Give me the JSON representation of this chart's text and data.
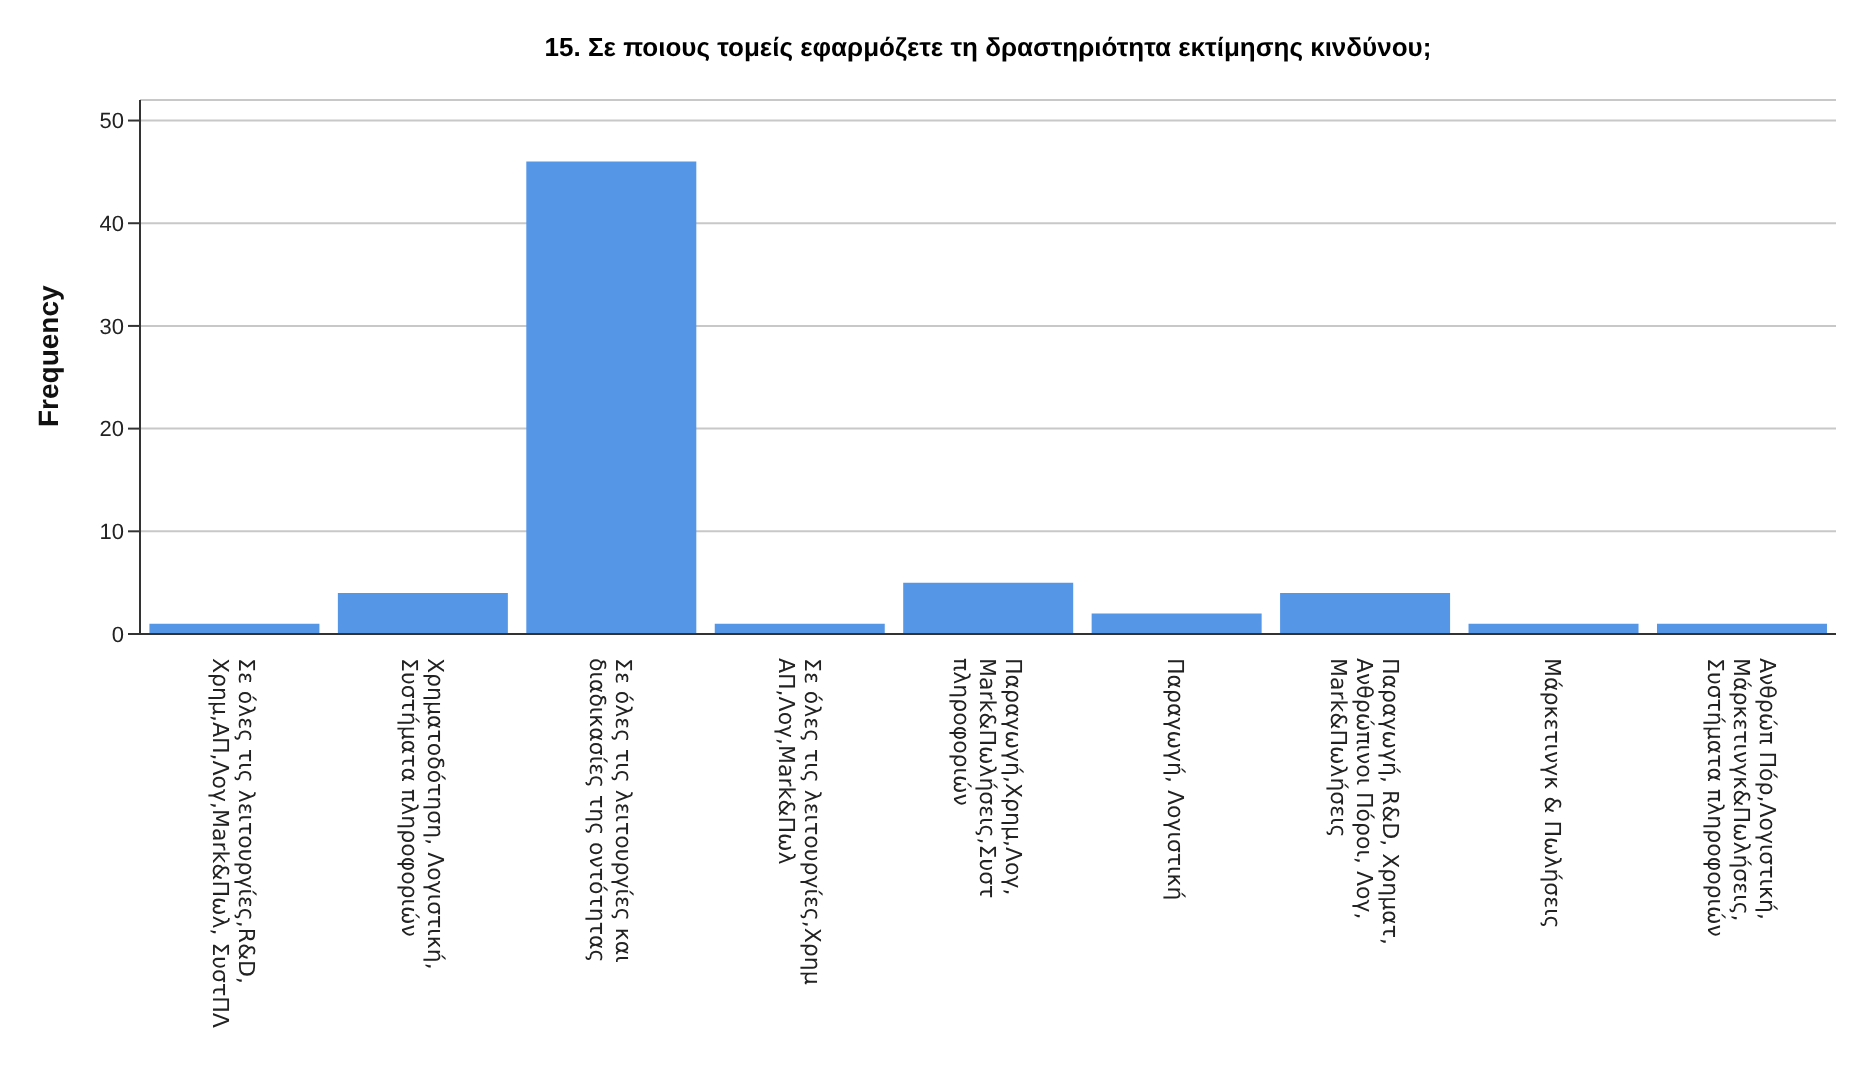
{
  "chart_data": {
    "type": "bar",
    "title": "15. Σε ποιους τομείς εφαρμόζετε τη δραστηριότητα εκτίμησης κινδύνου;",
    "ylabel": "Frequency",
    "categories": [
      "Σε όλες τις λειτουργίες,R&D, Χρημ,ΑΠ,Λογ,Mark&Πωλ, ΣυστΠΛ",
      "Χρηματοδότηση, Λογιστική, Συστήματα πληροφοριών",
      "Σε όλες τις λειτουργίες και διαδικασίες της οντότητας",
      "Σε όλες τις λειτουργίες,Χρημ ΑΠ,Λογ,Mark&Πωλ",
      "Παραγωγή,Χρημ,Λογ, Mark&Πωλήσεις,Συστ πληροφοριών",
      "Παραγωγή, Λογιστική",
      "Παραγωγή, R&D, Χρηματ, Ανθρώπινοι Πόροι, Λογ, Mark&Πωλήσεις",
      "Μάρκετινγκ & Πωλήσεις",
      "Ανθρώπ Πόρ,Λογιστική, Μάρκετινγκ&Πωλήσεις, Συστήματα πληροφοριών"
    ],
    "values": [
      1,
      4,
      46,
      1,
      5,
      2,
      4,
      1,
      1
    ],
    "color": "#5596e6",
    "ylim": [
      0,
      52
    ],
    "yticks": [
      0,
      10,
      20,
      30,
      40,
      50
    ],
    "grid": "y"
  }
}
